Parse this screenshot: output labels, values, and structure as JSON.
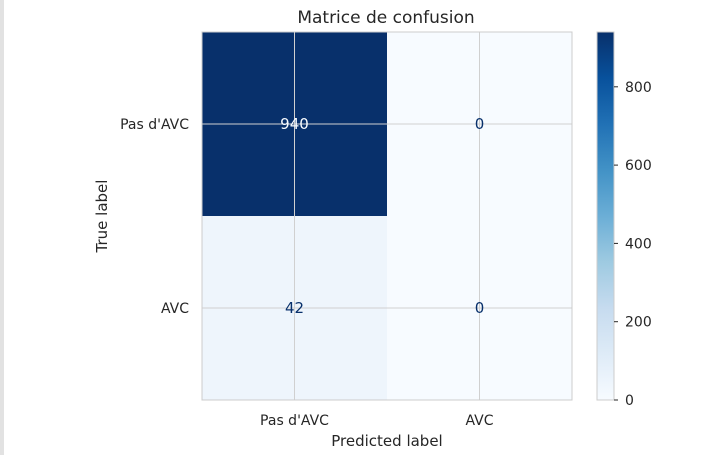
{
  "chart_data": {
    "type": "heatmap",
    "title": "Matrice de confusion",
    "xlabel": "Predicted label",
    "ylabel": "True label",
    "x_categories": [
      "Pas d'AVC",
      "AVC"
    ],
    "y_categories": [
      "Pas d'AVC",
      "AVC"
    ],
    "values": [
      [
        940,
        0
      ],
      [
        42,
        0
      ]
    ],
    "colormap": "Blues",
    "colorbar": {
      "min": 0,
      "max": 940,
      "ticks": [
        0,
        200,
        400,
        600,
        800
      ]
    },
    "grid": true,
    "colors": {
      "low": "#f7fbff",
      "high": "#08306b",
      "grid": "#d0d0d0",
      "frame": "#cccccc",
      "text_dark": "#08306b",
      "text_light": "#f7fbff"
    }
  }
}
